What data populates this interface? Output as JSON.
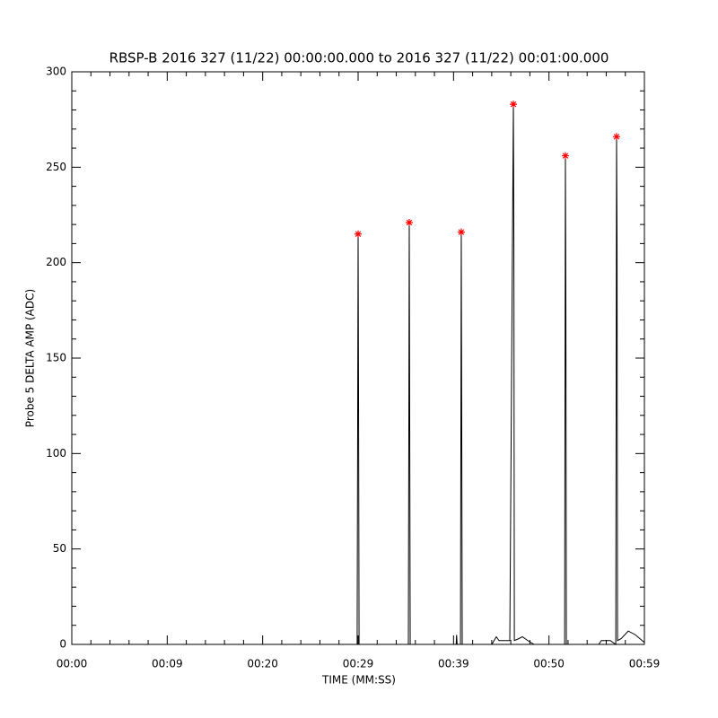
{
  "chart_data": {
    "type": "line",
    "title": "RBSP-B 2016 327 (11/22) 00:00:00.000 to 2016 327 (11/22) 00:01:00.000",
    "x_label": "TIME (MM:SS)",
    "y_label": "Probe 5 DELTA AMP (ADC)",
    "xlim": [
      0,
      59
    ],
    "ylim": [
      0,
      300
    ],
    "xticks": [
      {
        "value": 0,
        "label": "00:00"
      },
      {
        "value": 9.8333,
        "label": "00:09"
      },
      {
        "value": 19.6667,
        "label": "00:20"
      },
      {
        "value": 29.5,
        "label": "00:29"
      },
      {
        "value": 39.3333,
        "label": "00:39"
      },
      {
        "value": 49.1667,
        "label": "00:50"
      },
      {
        "value": 59,
        "label": "00:59"
      }
    ],
    "yticks": [
      0,
      50,
      100,
      150,
      200,
      250,
      300
    ],
    "minor_ticks": 5,
    "series": [
      {
        "style": "line",
        "color": "#000000",
        "x": [
          0,
          29.4,
          29.5,
          29.55,
          29.6,
          34.68,
          34.77,
          34.82,
          34.87,
          39.6,
          39.65,
          39.7,
          40.05,
          40.13,
          40.18,
          40.23,
          43.28,
          43.74,
          44.02,
          45.13,
          45.5,
          45.55,
          45.6,
          46.05,
          46.43,
          46.98,
          47.63,
          50.78,
          50.86,
          50.91,
          50.96,
          54.29,
          54.56,
          55.49,
          56.05,
          56.13,
          56.18,
          56.23,
          56.6,
          57.34,
          58.08,
          59
        ],
        "values": [
          0,
          0,
          215,
          122,
          0,
          0,
          221,
          112,
          0,
          0,
          5,
          0,
          0,
          216,
          112,
          0,
          0,
          4,
          2,
          2,
          283,
          209,
          2,
          3,
          4,
          2,
          0,
          0,
          256,
          177,
          0,
          0,
          2,
          2,
          0,
          266,
          213,
          2,
          3,
          7,
          5,
          1
        ]
      },
      {
        "style": "asterisk",
        "color": "#ff0000",
        "x": [
          29.5,
          34.77,
          40.13,
          45.5,
          50.86,
          56.13
        ],
        "values": [
          215,
          221,
          216,
          283,
          256,
          266
        ]
      }
    ]
  }
}
